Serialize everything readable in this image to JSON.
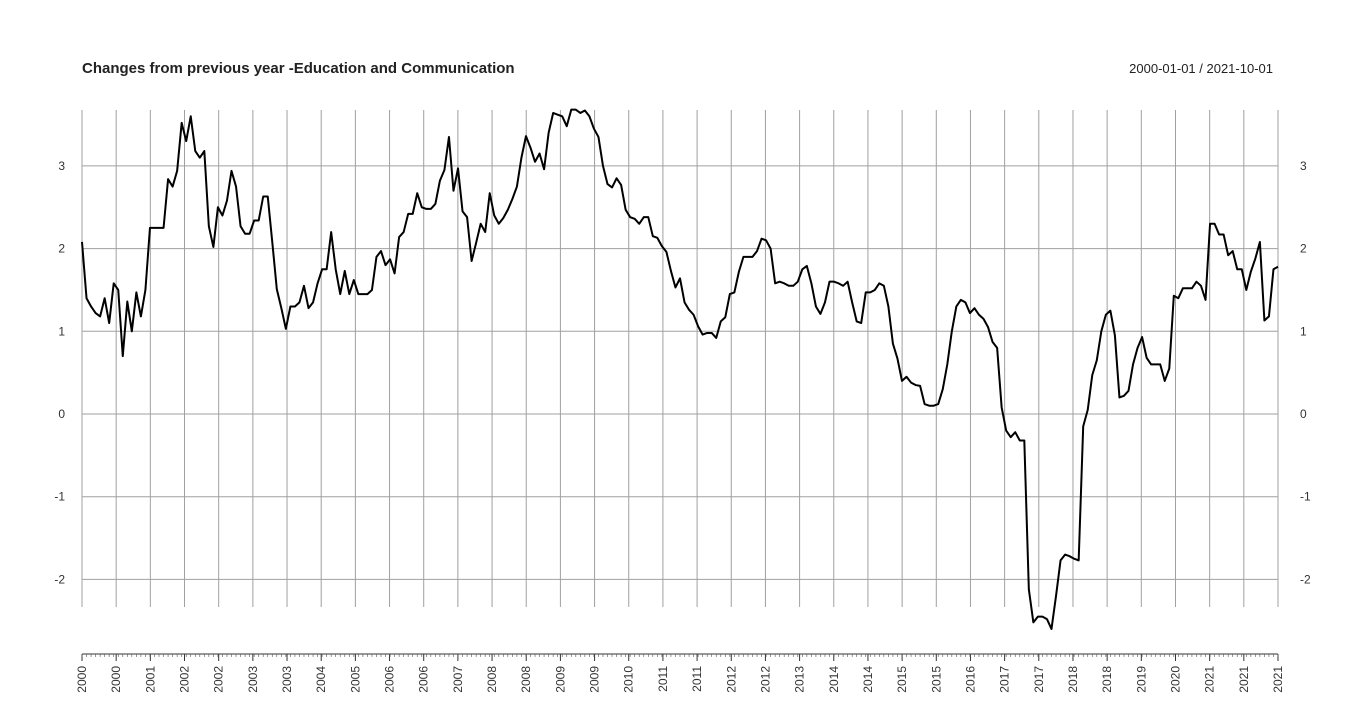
{
  "chart_data": {
    "type": "line",
    "title": "Changes from previous year -Education and Communication",
    "date_range": "2000-01-01 / 2021-10-01",
    "xlabel": "",
    "ylabel": "",
    "ylim": [
      -2.6,
      3.7
    ],
    "yticks": [
      -2,
      -1,
      0,
      1,
      2,
      3
    ],
    "ytick_labels": [
      "-2",
      "-1",
      "0",
      "1",
      "2",
      "3"
    ],
    "x_tick_labels": [
      "2000",
      "2000",
      "2001",
      "2002",
      "2002",
      "2003",
      "2003",
      "2004",
      "2005",
      "2006",
      "2006",
      "2007",
      "2008",
      "2008",
      "2009",
      "2009",
      "2010",
      "2011",
      "2011",
      "2012",
      "2012",
      "2013",
      "2014",
      "2014",
      "2015",
      "2015",
      "2016",
      "2017",
      "2017",
      "2018",
      "2018",
      "2019",
      "2020",
      "2021",
      "2021",
      "2021"
    ],
    "grid": true,
    "line_color": "#000000",
    "grid_color": "#a0a0a0",
    "series": [
      {
        "values": [
          2.08,
          1.4,
          1.3,
          1.22,
          1.18,
          1.4,
          1.1,
          1.58,
          1.5,
          0.7,
          1.36,
          1.0,
          1.47,
          1.18,
          1.5,
          2.25,
          2.25,
          2.25,
          2.25,
          2.84,
          2.75,
          2.94,
          3.52,
          3.3,
          3.6,
          3.18,
          3.1,
          3.18,
          2.27,
          2.02,
          2.5,
          2.4,
          2.58,
          2.94,
          2.75,
          2.27,
          2.18,
          2.18,
          2.34,
          2.34,
          2.63,
          2.63,
          2.08,
          1.51,
          1.28,
          1.03,
          1.3,
          1.3,
          1.35,
          1.55,
          1.28,
          1.35,
          1.58,
          1.75,
          1.75,
          2.2,
          1.75,
          1.45,
          1.73,
          1.45,
          1.62,
          1.45,
          1.45,
          1.45,
          1.5,
          1.9,
          1.97,
          1.8,
          1.87,
          1.7,
          2.14,
          2.2,
          2.42,
          2.42,
          2.67,
          2.5,
          2.48,
          2.48,
          2.54,
          2.82,
          2.95,
          3.35,
          2.7,
          2.97,
          2.45,
          2.38,
          1.85,
          2.07,
          2.3,
          2.2,
          2.67,
          2.4,
          2.3,
          2.37,
          2.47,
          2.6,
          2.75,
          3.1,
          3.36,
          3.22,
          3.05,
          3.15,
          2.96,
          3.4,
          3.64,
          3.62,
          3.6,
          3.48,
          3.68,
          3.68,
          3.64,
          3.67,
          3.6,
          3.45,
          3.35,
          3.0,
          2.78,
          2.74,
          2.85,
          2.77,
          2.47,
          2.38,
          2.36,
          2.3,
          2.38,
          2.38,
          2.15,
          2.13,
          2.03,
          1.96,
          1.73,
          1.53,
          1.64,
          1.35,
          1.26,
          1.2,
          1.06,
          0.96,
          0.98,
          0.98,
          0.92,
          1.12,
          1.17,
          1.45,
          1.47,
          1.72,
          1.9,
          1.9,
          1.9,
          1.97,
          2.12,
          2.1,
          2.0,
          1.58,
          1.6,
          1.58,
          1.55,
          1.55,
          1.6,
          1.75,
          1.79,
          1.58,
          1.3,
          1.21,
          1.35,
          1.6,
          1.6,
          1.58,
          1.55,
          1.6,
          1.35,
          1.12,
          1.1,
          1.47,
          1.47,
          1.5,
          1.58,
          1.55,
          1.3,
          0.85,
          0.67,
          0.4,
          0.45,
          0.38,
          0.35,
          0.34,
          0.12,
          0.1,
          0.1,
          0.12,
          0.3,
          0.6,
          1.0,
          1.3,
          1.38,
          1.35,
          1.22,
          1.28,
          1.2,
          1.15,
          1.05,
          0.87,
          0.8,
          0.08,
          -0.2,
          -0.28,
          -0.22,
          -0.32,
          -0.32,
          -2.12,
          -2.52,
          -2.45,
          -2.45,
          -2.48,
          -2.6,
          -2.2,
          -1.77,
          -1.7,
          -1.72,
          -1.75,
          -1.77,
          -0.15,
          0.05,
          0.47,
          0.65,
          1.0,
          1.2,
          1.25,
          0.95,
          0.2,
          0.22,
          0.28,
          0.6,
          0.8,
          0.93,
          0.68,
          0.6,
          0.6,
          0.6,
          0.4,
          0.55,
          1.43,
          1.4,
          1.52,
          1.52,
          1.52,
          1.6,
          1.55,
          1.38,
          2.3,
          2.3,
          2.17,
          2.17,
          1.92,
          1.97,
          1.75,
          1.75,
          1.5,
          1.72,
          1.88,
          2.08,
          1.13,
          1.18,
          1.75,
          1.78
        ]
      }
    ]
  }
}
